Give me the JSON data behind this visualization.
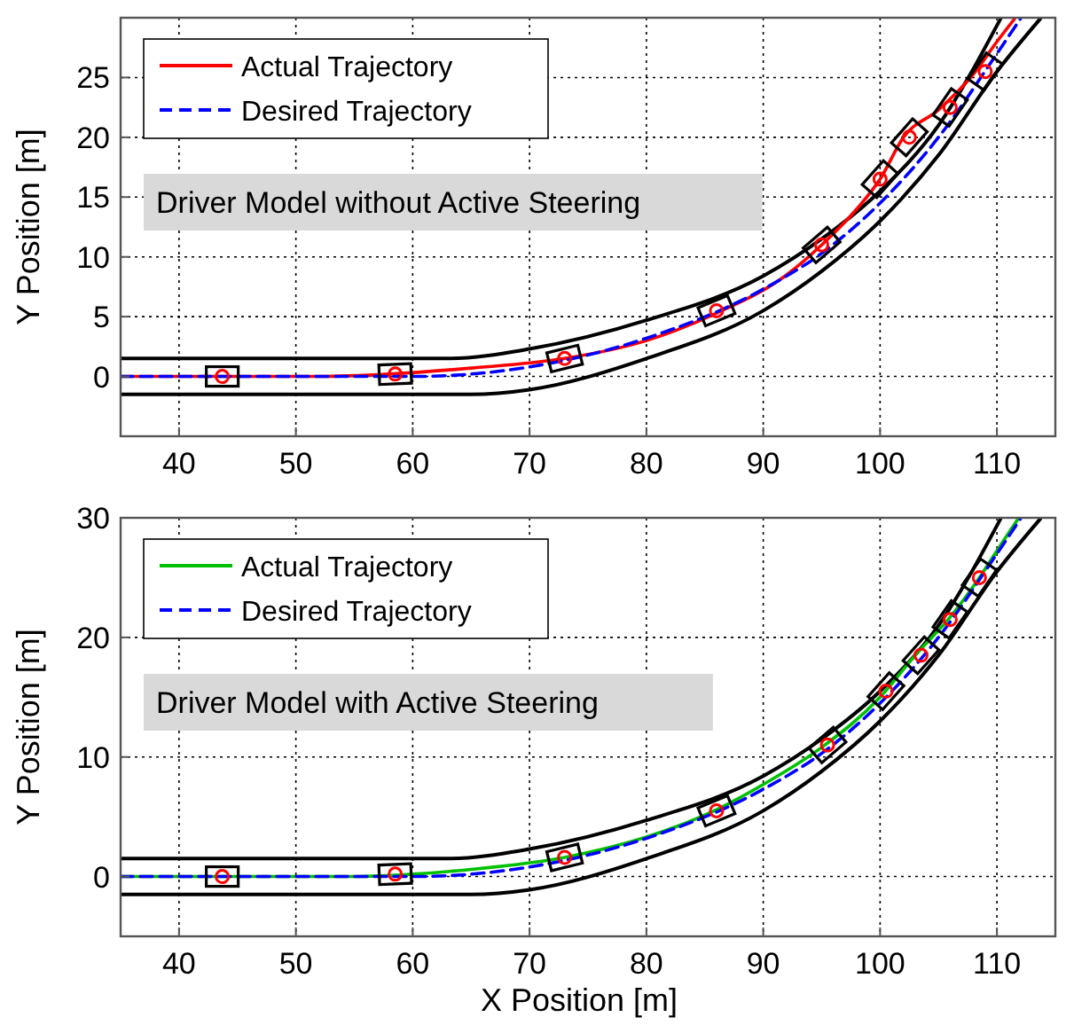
{
  "chart_data": [
    {
      "type": "line",
      "ylabel": "Y Position [m]",
      "xlim": [
        35,
        115
      ],
      "ylim": [
        -5,
        30
      ],
      "xticks": [
        40,
        50,
        60,
        70,
        80,
        90,
        100,
        110
      ],
      "yticks": [
        0,
        5,
        10,
        15,
        20,
        25
      ],
      "grid": true,
      "legend": "top left",
      "annotations": [
        "Driver Model without Active Steering"
      ],
      "series": [
        {
          "color": "#000000",
          "line_style": "solid",
          "x": [
            35,
            63,
            70,
            80,
            90,
            95,
            100,
            105,
            110.3
          ],
          "values": [
            1.5,
            1.5,
            2.3,
            4.7,
            8.4,
            11.5,
            15.5,
            21,
            29.9
          ]
        },
        {
          "color": "#000000",
          "line_style": "solid",
          "x": [
            35,
            65,
            70,
            80,
            90,
            95,
            100,
            105,
            110,
            113.7
          ],
          "values": [
            -1.5,
            -1.5,
            -1.1,
            1.5,
            5.5,
            8.8,
            13,
            18.5,
            25.5,
            29.9
          ]
        },
        {
          "name": "Actual Trajectory",
          "color": "#ff0000",
          "line_style": "solid",
          "x": [
            35,
            52,
            58,
            65,
            73,
            80,
            86,
            92,
            95,
            98,
            100,
            102,
            105,
            108,
            110,
            111.5
          ],
          "values": [
            0,
            0,
            0.2,
            0.7,
            1.5,
            3,
            5.3,
            8.5,
            11,
            14,
            16.5,
            20,
            22.3,
            25.3,
            28,
            29.9
          ]
        },
        {
          "name": "Desired Trajectory",
          "color": "#0000ff",
          "line_style": "dashed",
          "x": [
            35,
            60,
            65,
            70,
            80,
            90,
            95,
            100,
            105,
            110,
            112
          ],
          "values": [
            0,
            0,
            0.2,
            0.8,
            3.2,
            7.3,
            10.3,
            14.5,
            20,
            27,
            29.9
          ]
        },
        {
          "type": "scatter",
          "marker": "square",
          "color": "#000000",
          "x": [
            43.7,
            58.5,
            73,
            86,
            95,
            100,
            102.5,
            106,
            109
          ],
          "values": [
            0,
            0.2,
            1.5,
            5.5,
            11,
            16.5,
            20,
            22.5,
            25.5
          ]
        },
        {
          "type": "scatter",
          "marker": "circle",
          "color": "#ff0000",
          "x": [
            43.7,
            58.5,
            73,
            86,
            95,
            100,
            102.5,
            106,
            109
          ],
          "values": [
            0,
            0.2,
            1.5,
            5.5,
            11,
            16.5,
            20,
            22.5,
            25.5
          ]
        }
      ]
    },
    {
      "type": "line",
      "xlabel": "X Position [m]",
      "ylabel": "Y Position [m]",
      "xlim": [
        35,
        115
      ],
      "ylim": [
        -5,
        30
      ],
      "xticks": [
        40,
        50,
        60,
        70,
        80,
        90,
        100,
        110
      ],
      "yticks": [
        0,
        10,
        20,
        30
      ],
      "grid": true,
      "legend": "top left",
      "annotations": [
        "Driver Model with Active Steering"
      ],
      "series": [
        {
          "color": "#000000",
          "line_style": "solid",
          "x": [
            35,
            63,
            70,
            80,
            90,
            95,
            100,
            105,
            110.3
          ],
          "values": [
            1.5,
            1.5,
            2.3,
            4.7,
            8.4,
            11.5,
            15.5,
            21,
            29.9
          ]
        },
        {
          "color": "#000000",
          "line_style": "solid",
          "x": [
            35,
            65,
            70,
            80,
            90,
            95,
            100,
            105,
            110,
            113.7
          ],
          "values": [
            -1.5,
            -1.5,
            -1.1,
            1.5,
            5.5,
            8.8,
            13,
            18.5,
            25.5,
            29.9
          ]
        },
        {
          "name": "Actual Trajectory",
          "color": "#00c000",
          "line_style": "solid",
          "x": [
            35,
            55,
            60,
            65,
            73,
            80,
            86,
            90,
            95,
            100,
            103,
            106,
            108.5,
            110.5,
            111.8
          ],
          "values": [
            0,
            0,
            0.2,
            0.6,
            1.6,
            3.3,
            5.6,
            7.7,
            10.8,
            15,
            18.5,
            21.7,
            25,
            28,
            29.9
          ]
        },
        {
          "name": "Desired Trajectory",
          "color": "#0000ff",
          "line_style": "dashed",
          "x": [
            35,
            60,
            65,
            70,
            80,
            90,
            95,
            100,
            105,
            110,
            112
          ],
          "values": [
            0,
            0,
            0.2,
            0.8,
            3.2,
            7.3,
            10.3,
            14.5,
            20,
            27,
            29.9
          ]
        },
        {
          "type": "scatter",
          "marker": "square",
          "color": "#000000",
          "x": [
            43.7,
            58.5,
            73,
            86,
            95.5,
            100.5,
            103.5,
            106,
            108.5
          ],
          "values": [
            0,
            0.2,
            1.6,
            5.5,
            11,
            15.5,
            18.5,
            21.5,
            25
          ]
        },
        {
          "type": "scatter",
          "marker": "circle",
          "color": "#ff0000",
          "x": [
            43.7,
            58.5,
            73,
            86,
            95.5,
            100.5,
            103.5,
            106,
            108.5
          ],
          "values": [
            0,
            0.2,
            1.6,
            5.5,
            11,
            15.5,
            18.5,
            21.5,
            25
          ]
        }
      ]
    }
  ]
}
